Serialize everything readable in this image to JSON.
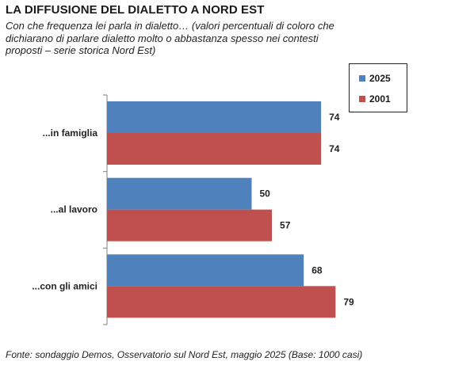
{
  "title": "LA DIFFUSIONE DEL DIALETTO A NORD EST",
  "subtitle": "Con che frequenza lei parla in dialetto… (valori percentuali di coloro che dichiarano di parlare dialetto molto o abbastanza spesso nei contesti proposti – serie storica Nord Est)",
  "source": "Fonte: sondaggio Demos, Osservatorio sul Nord Est, maggio 2025 (Base: 1000 casi)",
  "colors": {
    "s2025": "#4f81bd",
    "s2001": "#c0504d"
  },
  "chart_data": {
    "type": "bar",
    "orientation": "horizontal",
    "categories": [
      "...in famiglia",
      "...al lavoro",
      "...con gli amici"
    ],
    "series": [
      {
        "name": "2025",
        "values": [
          74,
          50,
          68
        ]
      },
      {
        "name": "2001",
        "values": [
          74,
          57,
          79
        ]
      }
    ],
    "xlim": [
      0,
      100
    ],
    "grid": false,
    "legend": "top-right"
  }
}
